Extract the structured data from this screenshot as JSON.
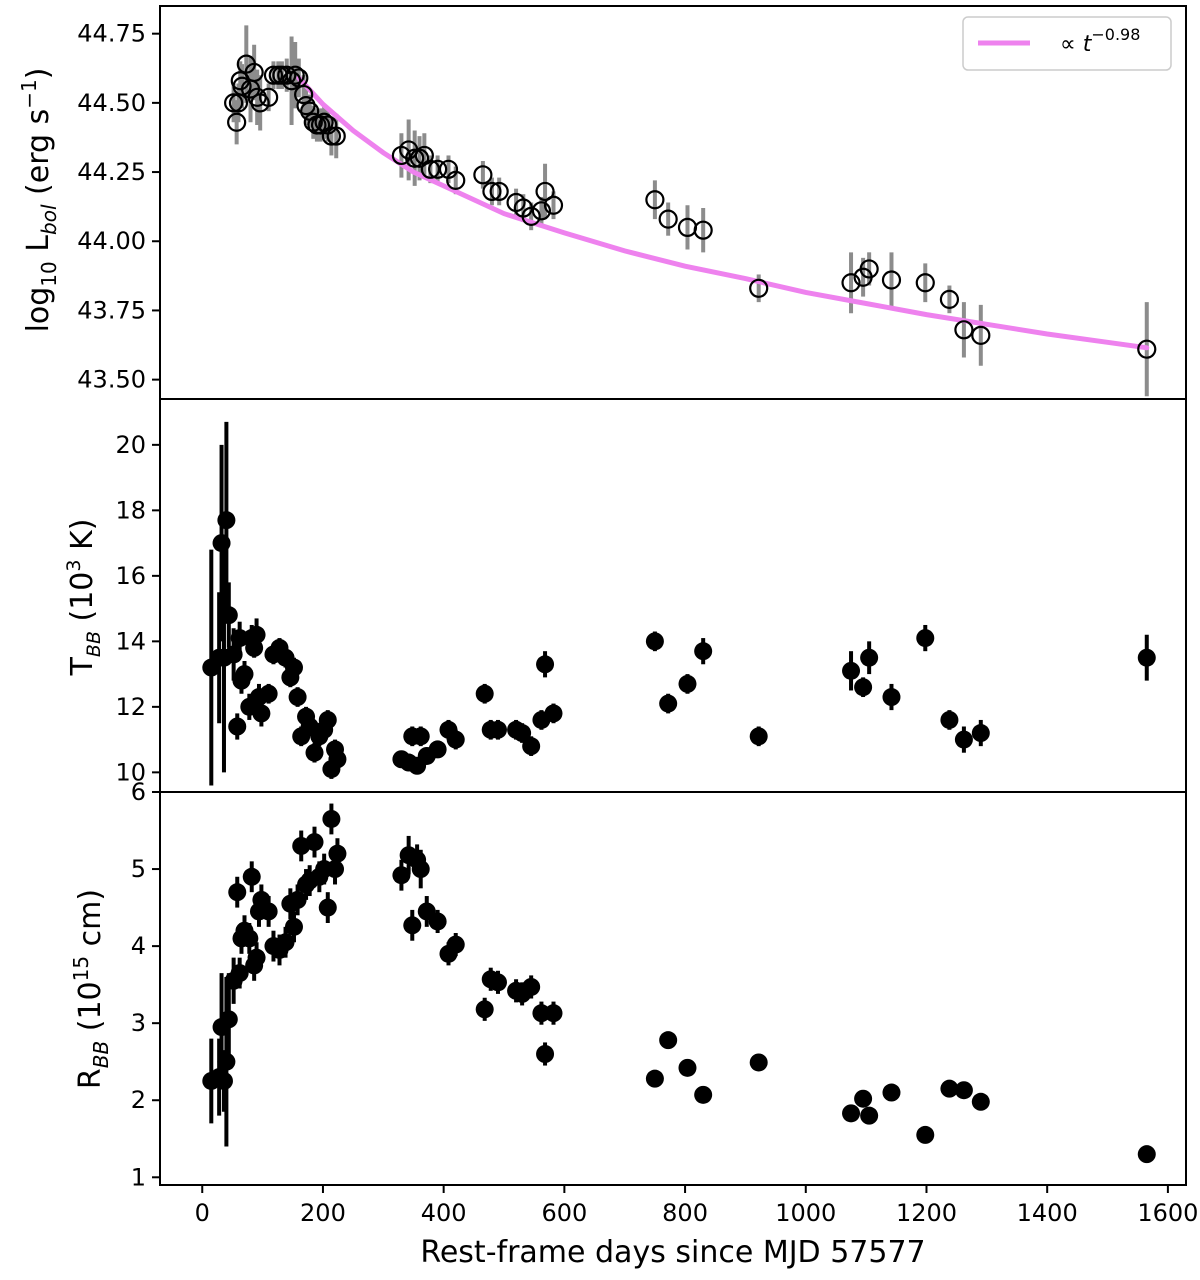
{
  "chart_data": {
    "type": "scatter",
    "xlabel": "Rest-frame days since MJD 57577",
    "xlim": [
      -70,
      1630
    ],
    "xticks": [
      0,
      200,
      400,
      600,
      800,
      1000,
      1200,
      1400,
      1600
    ],
    "xtick_labels": [
      "0",
      "200",
      "400",
      "600",
      "800",
      "1000",
      "1200",
      "1400",
      "1600"
    ],
    "panels": [
      {
        "id": "lbol",
        "ylabel_main": "log",
        "ylabel_sub": "10",
        "ylabel_rest": " L",
        "ylabel_sub2": "bol",
        "ylabel_unit": " (erg s",
        "ylabel_sup": "−1",
        "ylabel_end": ")",
        "ylim": [
          43.43,
          44.85
        ],
        "yticks": [
          43.5,
          43.75,
          44.0,
          44.25,
          44.5,
          44.75
        ],
        "ytick_labels": [
          "43.50",
          "43.75",
          "44.00",
          "44.25",
          "44.50",
          "44.75"
        ],
        "marker": "open-circle",
        "errcolor": "#8c8c8c",
        "points": [
          [
            52,
            44.5,
            0.07
          ],
          [
            57,
            44.43,
            0.08
          ],
          [
            60,
            44.5,
            0.07
          ],
          [
            63,
            44.58,
            0.07
          ],
          [
            66,
            44.56,
            0.08
          ],
          [
            73,
            44.64,
            0.14
          ],
          [
            80,
            44.55,
            0.12
          ],
          [
            86,
            44.61,
            0.1
          ],
          [
            91,
            44.52,
            0.1
          ],
          [
            96,
            44.5,
            0.1
          ],
          [
            110,
            44.52,
            0.05
          ],
          [
            118,
            44.6,
            0.05
          ],
          [
            126,
            44.6,
            0.05
          ],
          [
            132,
            44.6,
            0.05
          ],
          [
            140,
            44.6,
            0.06
          ],
          [
            148,
            44.58,
            0.16
          ],
          [
            154,
            44.6,
            0.12
          ],
          [
            160,
            44.59,
            0.07
          ],
          [
            168,
            44.53,
            0.07
          ],
          [
            172,
            44.49,
            0.07
          ],
          [
            178,
            44.47,
            0.06
          ],
          [
            184,
            44.43,
            0.06
          ],
          [
            190,
            44.42,
            0.06
          ],
          [
            196,
            44.42,
            0.06
          ],
          [
            202,
            44.43,
            0.06
          ],
          [
            208,
            44.42,
            0.06
          ],
          [
            214,
            44.38,
            0.07
          ],
          [
            222,
            44.38,
            0.08
          ],
          [
            330,
            44.31,
            0.08
          ],
          [
            342,
            44.33,
            0.11
          ],
          [
            352,
            44.3,
            0.1
          ],
          [
            360,
            44.3,
            0.08
          ],
          [
            368,
            44.31,
            0.08
          ],
          [
            378,
            44.26,
            0.05
          ],
          [
            390,
            44.26,
            0.05
          ],
          [
            408,
            44.26,
            0.05
          ],
          [
            420,
            44.22,
            0.05
          ],
          [
            465,
            44.24,
            0.05
          ],
          [
            480,
            44.18,
            0.05
          ],
          [
            492,
            44.18,
            0.05
          ],
          [
            520,
            44.14,
            0.05
          ],
          [
            532,
            44.12,
            0.05
          ],
          [
            545,
            44.09,
            0.05
          ],
          [
            562,
            44.11,
            0.05
          ],
          [
            568,
            44.18,
            0.1
          ],
          [
            582,
            44.13,
            0.05
          ],
          [
            750,
            44.15,
            0.07
          ],
          [
            772,
            44.08,
            0.06
          ],
          [
            804,
            44.05,
            0.08
          ],
          [
            830,
            44.04,
            0.08
          ],
          [
            922,
            43.83,
            0.05
          ],
          [
            1075,
            43.85,
            0.11
          ],
          [
            1095,
            43.87,
            0.07
          ],
          [
            1105,
            43.9,
            0.06
          ],
          [
            1142,
            43.86,
            0.1
          ],
          [
            1198,
            43.85,
            0.07
          ],
          [
            1238,
            43.79,
            0.05
          ],
          [
            1262,
            43.68,
            0.1
          ],
          [
            1290,
            43.66,
            0.11
          ],
          [
            1565,
            43.61,
            0.17
          ]
        ],
        "fit": {
          "label_prefix": "∝ ",
          "label_var": "t",
          "label_exp": "−0.98",
          "color": "#ee82ee",
          "t0": 160,
          "y0": 44.59,
          "index": -0.98,
          "points": [
            [
              160,
              44.59
            ],
            [
              200,
              44.495
            ],
            [
              250,
              44.4
            ],
            [
              300,
              44.32
            ],
            [
              350,
              44.25
            ],
            [
              400,
              44.2
            ],
            [
              500,
              44.1
            ],
            [
              600,
              44.03
            ],
            [
              700,
              43.965
            ],
            [
              800,
              43.91
            ],
            [
              900,
              43.865
            ],
            [
              1000,
              43.815
            ],
            [
              1100,
              43.775
            ],
            [
              1200,
              43.735
            ],
            [
              1300,
              43.7
            ],
            [
              1400,
              43.665
            ],
            [
              1500,
              43.635
            ],
            [
              1565,
              43.615
            ]
          ]
        }
      },
      {
        "id": "tbb",
        "ylabel_main": "T",
        "ylabel_sub": "BB",
        "ylabel_unit": " (10",
        "ylabel_sup": "3",
        "ylabel_end": " K)",
        "ylim": [
          9.4,
          21.4
        ],
        "yticks": [
          10,
          12,
          14,
          16,
          18,
          20
        ],
        "ytick_labels": [
          "10",
          "12",
          "14",
          "16",
          "18",
          "20"
        ],
        "marker": "filled-circle",
        "errcolor": "#000000",
        "points": [
          [
            15,
            13.2,
            3.6
          ],
          [
            28,
            13.5,
            2.0
          ],
          [
            32,
            17.0,
            3.0
          ],
          [
            36,
            13.5,
            3.5
          ],
          [
            40,
            17.7,
            3.0
          ],
          [
            44,
            14.8,
            1.0
          ],
          [
            52,
            13.6,
            0.8
          ],
          [
            58,
            11.4,
            0.4
          ],
          [
            62,
            14.1,
            0.5
          ],
          [
            65,
            12.8,
            0.4
          ],
          [
            70,
            13.0,
            0.4
          ],
          [
            78,
            12.0,
            0.4
          ],
          [
            82,
            14.1,
            0.4
          ],
          [
            86,
            13.8,
            0.3
          ],
          [
            90,
            14.2,
            0.5
          ],
          [
            94,
            12.3,
            0.4
          ],
          [
            98,
            11.8,
            0.4
          ],
          [
            110,
            12.4,
            0.3
          ],
          [
            118,
            13.6,
            0.3
          ],
          [
            128,
            13.8,
            0.3
          ],
          [
            138,
            13.5,
            0.3
          ],
          [
            146,
            12.9,
            0.3
          ],
          [
            152,
            13.2,
            0.3
          ],
          [
            158,
            12.3,
            0.3
          ],
          [
            164,
            11.1,
            0.3
          ],
          [
            172,
            11.7,
            0.3
          ],
          [
            178,
            11.4,
            0.3
          ],
          [
            186,
            10.6,
            0.3
          ],
          [
            194,
            11.1,
            0.3
          ],
          [
            202,
            11.3,
            0.3
          ],
          [
            208,
            11.6,
            0.3
          ],
          [
            214,
            10.1,
            0.3
          ],
          [
            220,
            10.7,
            0.3
          ],
          [
            224,
            10.4,
            0.3
          ],
          [
            330,
            10.4,
            0.2
          ],
          [
            342,
            10.3,
            0.2
          ],
          [
            348,
            11.1,
            0.3
          ],
          [
            356,
            10.2,
            0.2
          ],
          [
            362,
            11.1,
            0.3
          ],
          [
            372,
            10.5,
            0.2
          ],
          [
            390,
            10.7,
            0.2
          ],
          [
            408,
            11.3,
            0.3
          ],
          [
            420,
            11.0,
            0.3
          ],
          [
            468,
            12.4,
            0.3
          ],
          [
            478,
            11.3,
            0.3
          ],
          [
            490,
            11.3,
            0.3
          ],
          [
            520,
            11.3,
            0.3
          ],
          [
            530,
            11.2,
            0.3
          ],
          [
            545,
            10.8,
            0.3
          ],
          [
            562,
            11.6,
            0.3
          ],
          [
            568,
            13.3,
            0.4
          ],
          [
            582,
            11.8,
            0.3
          ],
          [
            750,
            14.0,
            0.3
          ],
          [
            772,
            12.1,
            0.3
          ],
          [
            804,
            12.7,
            0.3
          ],
          [
            830,
            13.7,
            0.4
          ],
          [
            922,
            11.1,
            0.3
          ],
          [
            1075,
            13.1,
            0.6
          ],
          [
            1095,
            12.6,
            0.3
          ],
          [
            1105,
            13.5,
            0.5
          ],
          [
            1142,
            12.3,
            0.4
          ],
          [
            1198,
            14.1,
            0.4
          ],
          [
            1238,
            11.6,
            0.3
          ],
          [
            1262,
            11.0,
            0.4
          ],
          [
            1290,
            11.2,
            0.4
          ],
          [
            1565,
            13.5,
            0.7
          ]
        ]
      },
      {
        "id": "rbb",
        "ylabel_main": "R",
        "ylabel_sub": "BB",
        "ylabel_unit": " (10",
        "ylabel_sup": "15",
        "ylabel_end": " cm)",
        "ylim": [
          0.9,
          6.0
        ],
        "yticks": [
          1,
          2,
          3,
          4,
          5,
          6
        ],
        "ytick_labels": [
          "1",
          "2",
          "3",
          "4",
          "5",
          "6"
        ],
        "marker": "filled-circle",
        "errcolor": "#000000",
        "points": [
          [
            15,
            2.25,
            0.55
          ],
          [
            28,
            2.3,
            0.5
          ],
          [
            32,
            2.95,
            0.7
          ],
          [
            36,
            2.25,
            0.4
          ],
          [
            40,
            2.5,
            1.1
          ],
          [
            44,
            3.05,
            0.6
          ],
          [
            52,
            3.55,
            0.3
          ],
          [
            58,
            4.7,
            0.2
          ],
          [
            62,
            3.65,
            0.2
          ],
          [
            65,
            4.1,
            0.2
          ],
          [
            70,
            4.2,
            0.2
          ],
          [
            78,
            4.1,
            0.2
          ],
          [
            82,
            4.9,
            0.2
          ],
          [
            86,
            3.75,
            0.2
          ],
          [
            90,
            3.85,
            0.2
          ],
          [
            94,
            4.45,
            0.2
          ],
          [
            98,
            4.6,
            0.2
          ],
          [
            110,
            4.45,
            0.2
          ],
          [
            118,
            4.0,
            0.2
          ],
          [
            128,
            3.95,
            0.2
          ],
          [
            138,
            4.05,
            0.2
          ],
          [
            146,
            4.55,
            0.2
          ],
          [
            152,
            4.25,
            0.2
          ],
          [
            158,
            4.6,
            0.2
          ],
          [
            164,
            5.3,
            0.2
          ],
          [
            172,
            4.8,
            0.2
          ],
          [
            178,
            4.85,
            0.2
          ],
          [
            186,
            5.35,
            0.2
          ],
          [
            194,
            4.9,
            0.2
          ],
          [
            202,
            5.0,
            0.2
          ],
          [
            208,
            4.5,
            0.2
          ],
          [
            214,
            5.65,
            0.2
          ],
          [
            220,
            5.0,
            0.2
          ],
          [
            224,
            5.2,
            0.2
          ],
          [
            330,
            4.92,
            0.2
          ],
          [
            342,
            5.18,
            0.25
          ],
          [
            348,
            4.27,
            0.2
          ],
          [
            356,
            5.12,
            0.2
          ],
          [
            362,
            5.0,
            0.25
          ],
          [
            372,
            4.45,
            0.2
          ],
          [
            390,
            4.32,
            0.15
          ],
          [
            408,
            3.9,
            0.15
          ],
          [
            420,
            4.02,
            0.15
          ],
          [
            468,
            3.18,
            0.15
          ],
          [
            478,
            3.57,
            0.15
          ],
          [
            490,
            3.53,
            0.15
          ],
          [
            520,
            3.42,
            0.15
          ],
          [
            530,
            3.38,
            0.15
          ],
          [
            545,
            3.47,
            0.15
          ],
          [
            562,
            3.13,
            0.15
          ],
          [
            568,
            2.6,
            0.15
          ],
          [
            582,
            3.13,
            0.15
          ],
          [
            750,
            2.28,
            0.1
          ],
          [
            772,
            2.78,
            0.1
          ],
          [
            804,
            2.42,
            0.1
          ],
          [
            830,
            2.07,
            0.1
          ],
          [
            922,
            2.49,
            0.1
          ],
          [
            1075,
            1.83,
            0.1
          ],
          [
            1095,
            2.02,
            0.1
          ],
          [
            1105,
            1.8,
            0.1
          ],
          [
            1142,
            2.1,
            0.1
          ],
          [
            1198,
            1.55,
            0.1
          ],
          [
            1238,
            2.15,
            0.1
          ],
          [
            1262,
            2.13,
            0.1
          ],
          [
            1290,
            1.98,
            0.1
          ],
          [
            1565,
            1.3,
            0.1
          ]
        ]
      }
    ]
  }
}
